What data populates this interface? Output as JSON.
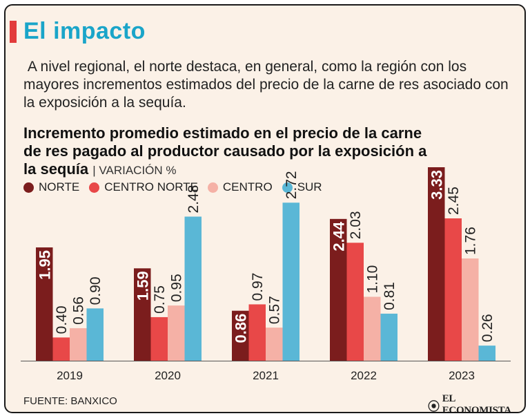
{
  "title": "El impacto",
  "intro": "A nivel regional, el norte destaca, en general, como la región con los mayores incrementos estimados del precio de la carne de res asociado con la exposición a la sequía.",
  "chart_data": {
    "type": "bar",
    "title": "Incremento promedio estimado en el precio de la carne de res pagado al productor causado por la exposición a la sequía",
    "subtitle": "| VARIACIÓN %",
    "categories": [
      "2019",
      "2020",
      "2021",
      "2022",
      "2023"
    ],
    "series": [
      {
        "name": "NORTE",
        "color": "#7b1d1d",
        "values": [
          1.95,
          1.59,
          0.86,
          2.44,
          3.33
        ],
        "labels": [
          "1.95",
          "1.59",
          "0.86",
          "2.44",
          "3.33"
        ]
      },
      {
        "name": "CENTRO NORTE",
        "color": "#e84848",
        "values": [
          0.4,
          0.75,
          0.97,
          2.03,
          2.45
        ],
        "labels": [
          "0.40",
          "0.75",
          "0.97",
          "2.03",
          "2.45"
        ]
      },
      {
        "name": "CENTRO",
        "color": "#f5b1a6",
        "values": [
          0.56,
          0.95,
          0.57,
          1.1,
          1.76
        ],
        "labels": [
          "0.56",
          "0.95",
          "0.57",
          "1.10",
          "1.76"
        ]
      },
      {
        "name": "SUR",
        "color": "#5ab7d6",
        "values": [
          0.9,
          2.48,
          2.72,
          0.81,
          0.26
        ],
        "labels": [
          "0.90",
          "2.48",
          "2.72",
          "0.81",
          "0.26"
        ]
      }
    ],
    "ylim": [
      0,
      3.33
    ]
  },
  "source": "FUENTE: BANXICO",
  "brand": "EL ECONOMISTA",
  "brand_icon": "newspaper-logo-icon"
}
